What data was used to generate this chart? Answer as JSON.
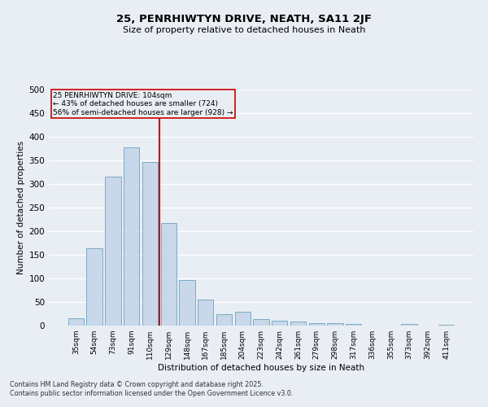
{
  "title": "25, PENRHIWTYN DRIVE, NEATH, SA11 2JF",
  "subtitle": "Size of property relative to detached houses in Neath",
  "xlabel": "Distribution of detached houses by size in Neath",
  "ylabel": "Number of detached properties",
  "categories": [
    "35sqm",
    "54sqm",
    "73sqm",
    "91sqm",
    "110sqm",
    "129sqm",
    "148sqm",
    "167sqm",
    "185sqm",
    "204sqm",
    "223sqm",
    "242sqm",
    "261sqm",
    "279sqm",
    "298sqm",
    "317sqm",
    "336sqm",
    "355sqm",
    "373sqm",
    "392sqm",
    "411sqm"
  ],
  "values": [
    16,
    164,
    316,
    378,
    347,
    217,
    96,
    55,
    24,
    29,
    14,
    11,
    9,
    6,
    5,
    3,
    0,
    0,
    3,
    0,
    1
  ],
  "bar_color": "#c8d8ea",
  "bar_edge_color": "#7aaac8",
  "ref_line_x": 4.5,
  "ref_line_label": "25 PENRHIWTYN DRIVE: 104sqm",
  "ref_line_sub1": "← 43% of detached houses are smaller (724)",
  "ref_line_sub2": "56% of semi-detached houses are larger (928) →",
  "ref_line_color": "#cc0000",
  "annotation_box_edge_color": "#cc0000",
  "ylim": [
    0,
    500
  ],
  "yticks": [
    0,
    50,
    100,
    150,
    200,
    250,
    300,
    350,
    400,
    450,
    500
  ],
  "background_color": "#e8eef4",
  "grid_color": "#ffffff",
  "footnote1": "Contains HM Land Registry data © Crown copyright and database right 2025.",
  "footnote2": "Contains public sector information licensed under the Open Government Licence v3.0."
}
